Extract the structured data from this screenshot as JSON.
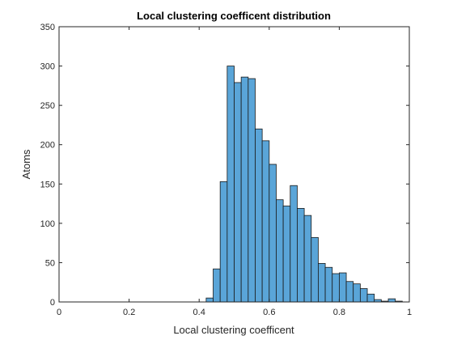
{
  "chart_data": {
    "type": "bar",
    "title": "Local clustering coefficent distribution",
    "xlabel": "Local clustering coefficent",
    "ylabel": "Atoms",
    "xlim": [
      0,
      1
    ],
    "ylim": [
      0,
      350
    ],
    "xticks": [
      0,
      0.2,
      0.4,
      0.6,
      0.8,
      1
    ],
    "xtick_labels": [
      "0",
      "0.2",
      "0.4",
      "0.6",
      "0.8",
      "1"
    ],
    "yticks": [
      0,
      50,
      100,
      150,
      200,
      250,
      300,
      350
    ],
    "ytick_labels": [
      "0",
      "50",
      "100",
      "150",
      "200",
      "250",
      "300",
      "350"
    ],
    "grid": false,
    "bar_color": "#5aa5d8",
    "edge_color": "#1a1a1a",
    "bin_width": 0.02,
    "bins": [
      {
        "x0": 0.42,
        "x1": 0.44,
        "count": 5
      },
      {
        "x0": 0.44,
        "x1": 0.46,
        "count": 42
      },
      {
        "x0": 0.46,
        "x1": 0.48,
        "count": 153
      },
      {
        "x0": 0.48,
        "x1": 0.5,
        "count": 300
      },
      {
        "x0": 0.5,
        "x1": 0.52,
        "count": 279
      },
      {
        "x0": 0.52,
        "x1": 0.54,
        "count": 286
      },
      {
        "x0": 0.54,
        "x1": 0.56,
        "count": 284
      },
      {
        "x0": 0.56,
        "x1": 0.58,
        "count": 220
      },
      {
        "x0": 0.58,
        "x1": 0.6,
        "count": 205
      },
      {
        "x0": 0.6,
        "x1": 0.62,
        "count": 175
      },
      {
        "x0": 0.62,
        "x1": 0.64,
        "count": 130
      },
      {
        "x0": 0.64,
        "x1": 0.66,
        "count": 122
      },
      {
        "x0": 0.66,
        "x1": 0.68,
        "count": 148
      },
      {
        "x0": 0.68,
        "x1": 0.7,
        "count": 119
      },
      {
        "x0": 0.7,
        "x1": 0.72,
        "count": 110
      },
      {
        "x0": 0.72,
        "x1": 0.74,
        "count": 82
      },
      {
        "x0": 0.74,
        "x1": 0.76,
        "count": 49
      },
      {
        "x0": 0.76,
        "x1": 0.78,
        "count": 44
      },
      {
        "x0": 0.78,
        "x1": 0.8,
        "count": 36
      },
      {
        "x0": 0.8,
        "x1": 0.82,
        "count": 37
      },
      {
        "x0": 0.82,
        "x1": 0.84,
        "count": 26
      },
      {
        "x0": 0.84,
        "x1": 0.86,
        "count": 23
      },
      {
        "x0": 0.86,
        "x1": 0.88,
        "count": 17
      },
      {
        "x0": 0.88,
        "x1": 0.9,
        "count": 10
      },
      {
        "x0": 0.9,
        "x1": 0.92,
        "count": 3
      },
      {
        "x0": 0.92,
        "x1": 0.94,
        "count": 1
      },
      {
        "x0": 0.94,
        "x1": 0.96,
        "count": 4
      },
      {
        "x0": 0.96,
        "x1": 0.98,
        "count": 1
      }
    ]
  }
}
